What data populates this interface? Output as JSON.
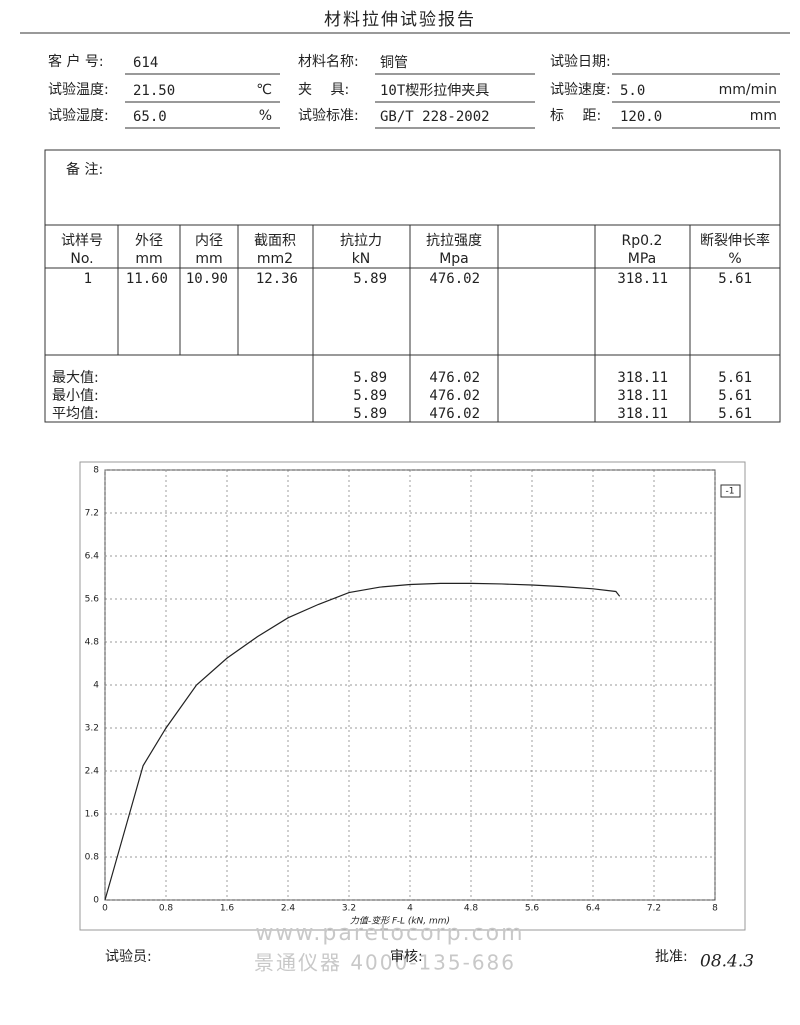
{
  "title": "材料拉伸试验报告",
  "header": {
    "fields": [
      {
        "label": "客 户 号:",
        "value": "614"
      },
      {
        "label": "材料名称:",
        "value": "铜管"
      },
      {
        "label": "试验日期:"
      },
      {
        "label": "试验温度:",
        "value": "21.50",
        "unit": "℃"
      },
      {
        "label": "夹　 具:",
        "value": "10T楔形拉伸夹具"
      },
      {
        "label": "试验速度:",
        "value": "5.0",
        "unit": "mm/min"
      },
      {
        "label": "试验湿度:",
        "value": "65.0",
        "unit": "%"
      },
      {
        "label": "试验标准:",
        "value": "GB/T 228-2002"
      },
      {
        "label": "标　 距:",
        "value": "120.0",
        "unit": "mm"
      }
    ]
  },
  "remarks": "备 注:",
  "table": {
    "columns": [
      {
        "name": "试样号",
        "unit": "No."
      },
      {
        "name": "外径",
        "unit": "mm"
      },
      {
        "name": "内径",
        "unit": "mm"
      },
      {
        "name": "截面积",
        "unit": "mm2"
      },
      {
        "name": "抗拉力",
        "unit": "kN"
      },
      {
        "name": "抗拉强度",
        "unit": "Mpa"
      },
      {
        "name": "Rp0.2",
        "unit": "MPa"
      },
      {
        "name": "断裂伸长率",
        "unit": "%"
      }
    ],
    "rows": [
      [
        "1",
        "11.60",
        "10.90",
        "12.36",
        "5.89",
        "476.02",
        "318.11",
        "5.61"
      ]
    ],
    "stats": [
      {
        "label": "最大值:",
        "values": [
          "5.89",
          "476.02",
          "318.11",
          "5.61"
        ]
      },
      {
        "label": "最小值:",
        "values": [
          "5.89",
          "476.02",
          "318.11",
          "5.61"
        ]
      },
      {
        "label": "平均值:",
        "values": [
          "5.89",
          "476.02",
          "318.11",
          "5.61"
        ]
      }
    ]
  },
  "chart_data": {
    "type": "line",
    "x_label": "力值-变形 F-L  (kN, mm)",
    "x": [
      0,
      0.1,
      0.3,
      0.5,
      0.8,
      1.2,
      1.6,
      2.0,
      2.4,
      2.8,
      3.2,
      3.6,
      4.0,
      4.4,
      4.8,
      5.2,
      5.6,
      6.0,
      6.4,
      6.7,
      6.75
    ],
    "series": [
      {
        "name": "-1",
        "color": "#222222",
        "values": [
          0,
          0.5,
          1.5,
          2.5,
          3.2,
          4.0,
          4.5,
          4.9,
          5.25,
          5.5,
          5.72,
          5.82,
          5.87,
          5.89,
          5.89,
          5.88,
          5.86,
          5.83,
          5.79,
          5.74,
          5.65
        ]
      }
    ],
    "xlim": [
      0,
      8
    ],
    "ylim": [
      0,
      8
    ],
    "xticks": [
      0,
      0.8,
      1.6,
      2.4,
      3.2,
      4,
      4.8,
      5.6,
      6.4,
      7.2,
      8
    ],
    "yticks": [
      0,
      0.8,
      1.6,
      2.4,
      3.2,
      4,
      4.8,
      5.6,
      6.4,
      7.2,
      8
    ],
    "grid": true
  },
  "footer": {
    "tester": "试验员:",
    "reviewer": "审核:",
    "approver": "批准:",
    "signature": "08.4.3"
  },
  "watermark": {
    "url": "www.paretocorp.com",
    "company": "景通仪器  4000-135-686"
  }
}
